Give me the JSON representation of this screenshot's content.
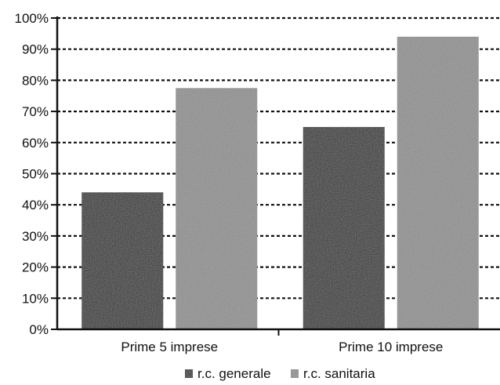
{
  "chart_data": {
    "type": "bar",
    "categories": [
      "Prime 5 imprese",
      "Prime 10 imprese"
    ],
    "series": [
      {
        "name": "r.c. generale",
        "values": [
          44,
          65
        ],
        "color": "#2b2b2b"
      },
      {
        "name": "r.c. sanitaria",
        "values": [
          77.5,
          94
        ],
        "color": "#8f8f8f"
      }
    ],
    "ylim": [
      0,
      100
    ],
    "yticks": [
      "0%",
      "10%",
      "20%",
      "30%",
      "40%",
      "50%",
      "60%",
      "70%",
      "80%",
      "90%",
      "100%"
    ],
    "grid": true,
    "legend_position": "bottom"
  }
}
